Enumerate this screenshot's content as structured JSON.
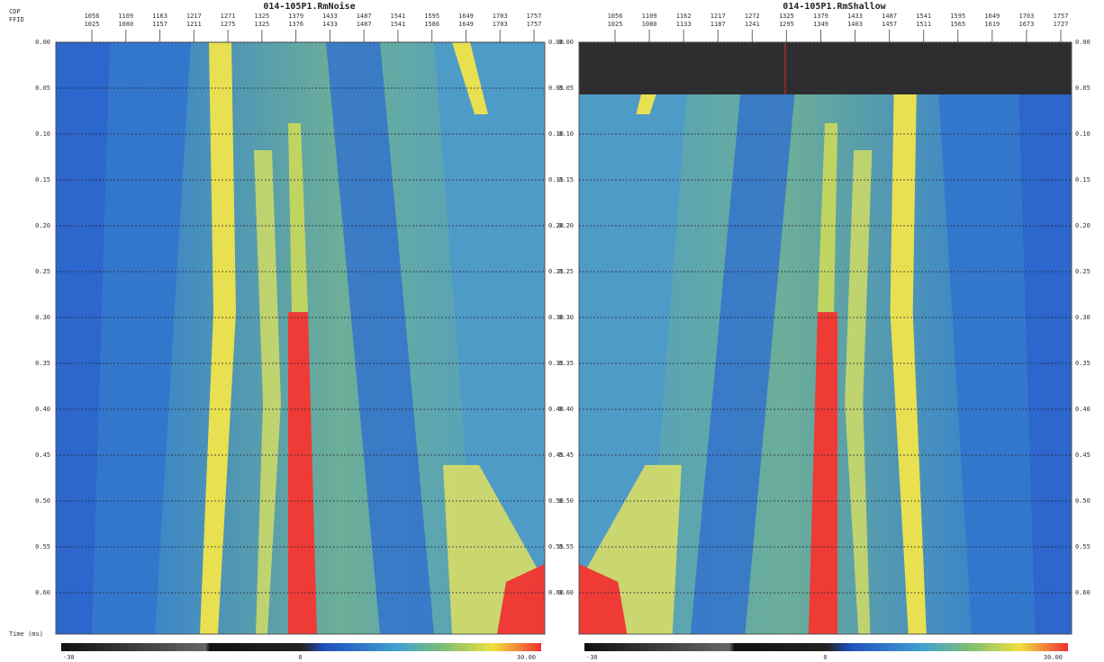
{
  "axis_labels": {
    "cdp": "CDP",
    "ffid": "FFID",
    "time": "Time (ms)"
  },
  "panels": [
    {
      "title": "014-105P1.RmNoise",
      "cdp": [
        "1056",
        "1109",
        "1163",
        "1217",
        "1271",
        "1325",
        "1379",
        "1433",
        "1487",
        "1541",
        "1595",
        "1649",
        "1703",
        "1757"
      ],
      "ffid": [
        "1025",
        "1080",
        "1157",
        "1211",
        "1275",
        "1325",
        "1376",
        "1433",
        "1487",
        "1541",
        "1586",
        "1649",
        "1703",
        "1757"
      ],
      "times": [
        "0.00",
        "0.05",
        "0.10",
        "0.15",
        "0.20",
        "0.25",
        "0.30",
        "0.35",
        "0.40",
        "0.45",
        "0.50",
        "0.55",
        "0.60"
      ],
      "colorbar": [
        "-30",
        "0",
        "30.00"
      ]
    },
    {
      "title": "014-105P1.RmShallow",
      "cdp": [
        "1056",
        "1109",
        "1162",
        "1217",
        "1272",
        "1325",
        "1379",
        "1433",
        "1487",
        "1541",
        "1595",
        "1649",
        "1703",
        "1757"
      ],
      "ffid": [
        "1025",
        "1080",
        "1133",
        "1187",
        "1241",
        "1295",
        "1349",
        "1403",
        "1457",
        "1511",
        "1565",
        "1619",
        "1673",
        "1727"
      ],
      "times": [
        "0.00",
        "0.05",
        "0.10",
        "0.15",
        "0.20",
        "0.25",
        "0.30",
        "0.35",
        "0.40",
        "0.45",
        "0.50",
        "0.55",
        "0.60"
      ],
      "colorbar": [
        "-30",
        "0",
        "30.00"
      ]
    }
  ]
}
